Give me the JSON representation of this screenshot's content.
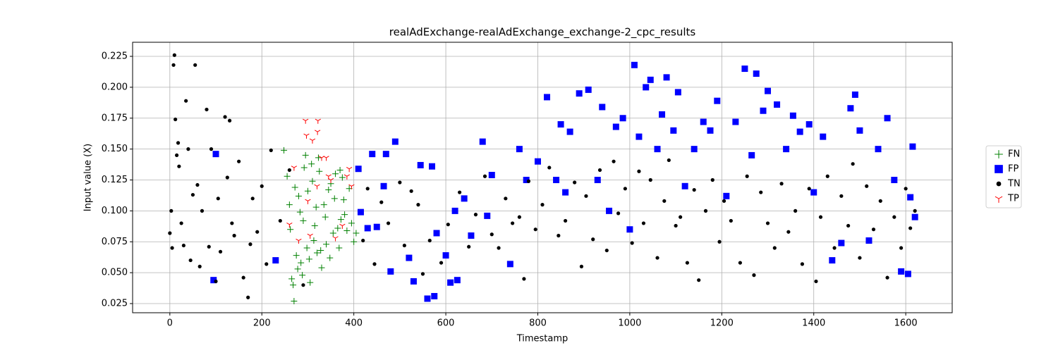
{
  "chart_data": {
    "type": "scatter",
    "title": "realAdExchange-realAdExchange_exchange-2_cpc_results",
    "x_label": "Timestamp",
    "y_label": "Input value (X)",
    "xlim": [
      -81,
      1701
    ],
    "ylim": [
      0.0176,
      0.2364
    ],
    "xticks": [
      0,
      200,
      400,
      600,
      800,
      1000,
      1200,
      1400,
      1600
    ],
    "yticks": [
      0.025,
      {
        "value": 0.05,
        "label": "0.050"
      },
      0.075,
      {
        "value": 0.1,
        "label": "0.100"
      },
      0.125,
      {
        "value": 0.15,
        "label": "0.150"
      },
      0.175,
      {
        "value": 0.2,
        "label": "0.200"
      },
      0.225
    ],
    "grid": true,
    "legend": "right",
    "series": [
      {
        "name": "FN",
        "color": "#008000",
        "marker": "plus",
        "x": [
          248,
          255,
          260,
          262,
          265,
          268,
          270,
          272,
          275,
          278,
          280,
          283,
          285,
          288,
          290,
          292,
          295,
          298,
          300,
          303,
          305,
          308,
          310,
          313,
          315,
          318,
          320,
          323,
          325,
          328,
          330,
          335,
          338,
          340,
          345,
          348,
          350,
          355,
          358,
          360,
          365,
          368,
          370,
          372,
          375,
          378,
          380,
          385,
          390,
          395,
          400,
          405
        ],
        "values": [
          0.149,
          0.128,
          0.105,
          0.085,
          0.045,
          0.04,
          0.027,
          0.119,
          0.064,
          0.053,
          0.112,
          0.099,
          0.058,
          0.048,
          0.092,
          0.135,
          0.145,
          0.07,
          0.116,
          0.061,
          0.042,
          0.138,
          0.124,
          0.076,
          0.088,
          0.103,
          0.066,
          0.143,
          0.132,
          0.068,
          0.054,
          0.105,
          0.095,
          0.073,
          0.117,
          0.062,
          0.122,
          0.082,
          0.11,
          0.13,
          0.086,
          0.07,
          0.133,
          0.093,
          0.127,
          0.109,
          0.097,
          0.084,
          0.118,
          0.09,
          0.075,
          0.082
        ]
      },
      {
        "name": "FP",
        "color": "#0000ff",
        "marker": "square",
        "x": [
          100,
          95,
          230,
          410,
          415,
          430,
          440,
          450,
          470,
          480,
          490,
          465,
          520,
          530,
          545,
          560,
          575,
          570,
          580,
          600,
          610,
          620,
          625,
          640,
          655,
          680,
          690,
          700,
          740,
          760,
          775,
          800,
          820,
          840,
          850,
          860,
          870,
          890,
          910,
          930,
          940,
          955,
          970,
          985,
          1000,
          1010,
          1020,
          1035,
          1045,
          1060,
          1070,
          1080,
          1095,
          1105,
          1120,
          1140,
          1160,
          1175,
          1190,
          1210,
          1230,
          1250,
          1265,
          1275,
          1290,
          1300,
          1320,
          1340,
          1355,
          1370,
          1390,
          1400,
          1420,
          1440,
          1460,
          1480,
          1490,
          1500,
          1520,
          1540,
          1560,
          1575,
          1590,
          1605,
          1610,
          1615,
          1620
        ],
        "values": [
          0.146,
          0.044,
          0.06,
          0.134,
          0.099,
          0.086,
          0.146,
          0.087,
          0.146,
          0.051,
          0.156,
          0.12,
          0.062,
          0.043,
          0.137,
          0.029,
          0.031,
          0.136,
          0.082,
          0.064,
          0.042,
          0.1,
          0.044,
          0.11,
          0.08,
          0.156,
          0.096,
          0.129,
          0.057,
          0.15,
          0.125,
          0.14,
          0.192,
          0.125,
          0.17,
          0.115,
          0.164,
          0.195,
          0.198,
          0.125,
          0.184,
          0.1,
          0.168,
          0.175,
          0.085,
          0.218,
          0.16,
          0.2,
          0.206,
          0.15,
          0.178,
          0.208,
          0.165,
          0.196,
          0.12,
          0.15,
          0.172,
          0.165,
          0.189,
          0.112,
          0.172,
          0.215,
          0.145,
          0.211,
          0.181,
          0.197,
          0.186,
          0.15,
          0.177,
          0.164,
          0.17,
          0.115,
          0.16,
          0.06,
          0.074,
          0.183,
          0.194,
          0.165,
          0.076,
          0.15,
          0.175,
          0.125,
          0.051,
          0.049,
          0.111,
          0.152,
          0.095
        ]
      },
      {
        "name": "TN",
        "color": "#000000",
        "marker": "circle",
        "x": [
          0,
          3,
          5,
          8,
          10,
          12,
          15,
          18,
          20,
          25,
          30,
          35,
          40,
          45,
          50,
          55,
          60,
          65,
          70,
          80,
          85,
          90,
          100,
          105,
          110,
          120,
          125,
          130,
          135,
          140,
          150,
          160,
          170,
          175,
          180,
          190,
          200,
          210,
          220,
          240,
          260,
          290,
          420,
          430,
          445,
          460,
          475,
          500,
          510,
          525,
          540,
          550,
          565,
          590,
          605,
          630,
          650,
          665,
          685,
          700,
          715,
          730,
          745,
          760,
          770,
          780,
          795,
          810,
          825,
          845,
          860,
          880,
          895,
          905,
          920,
          935,
          950,
          965,
          975,
          990,
          1005,
          1020,
          1030,
          1045,
          1060,
          1075,
          1085,
          1100,
          1110,
          1125,
          1140,
          1150,
          1165,
          1180,
          1195,
          1205,
          1220,
          1240,
          1255,
          1270,
          1285,
          1300,
          1315,
          1330,
          1345,
          1360,
          1375,
          1390,
          1405,
          1415,
          1430,
          1445,
          1460,
          1475,
          1485,
          1500,
          1515,
          1530,
          1545,
          1560,
          1575,
          1590,
          1600,
          1610,
          1620
        ],
        "values": [
          0.082,
          0.1,
          0.07,
          0.218,
          0.226,
          0.174,
          0.145,
          0.155,
          0.136,
          0.09,
          0.072,
          0.189,
          0.15,
          0.06,
          0.113,
          0.218,
          0.121,
          0.055,
          0.1,
          0.182,
          0.071,
          0.15,
          0.043,
          0.11,
          0.067,
          0.176,
          0.127,
          0.173,
          0.09,
          0.08,
          0.14,
          0.046,
          0.03,
          0.073,
          0.11,
          0.083,
          0.12,
          0.057,
          0.149,
          0.092,
          0.133,
          0.04,
          0.076,
          0.118,
          0.057,
          0.107,
          0.09,
          0.123,
          0.072,
          0.116,
          0.105,
          0.049,
          0.076,
          0.058,
          0.089,
          0.115,
          0.071,
          0.097,
          0.128,
          0.081,
          0.07,
          0.11,
          0.09,
          0.095,
          0.045,
          0.124,
          0.085,
          0.105,
          0.135,
          0.08,
          0.092,
          0.123,
          0.055,
          0.112,
          0.077,
          0.133,
          0.068,
          0.14,
          0.098,
          0.118,
          0.074,
          0.132,
          0.09,
          0.125,
          0.062,
          0.108,
          0.141,
          0.088,
          0.095,
          0.058,
          0.117,
          0.044,
          0.1,
          0.125,
          0.075,
          0.108,
          0.092,
          0.058,
          0.128,
          0.048,
          0.115,
          0.09,
          0.07,
          0.122,
          0.083,
          0.1,
          0.057,
          0.118,
          0.043,
          0.095,
          0.128,
          0.07,
          0.112,
          0.088,
          0.138,
          0.062,
          0.12,
          0.085,
          0.108,
          0.046,
          0.095,
          0.07,
          0.118,
          0.086,
          0.1
        ]
      },
      {
        "name": "TP",
        "color": "#ff0000",
        "marker": "tri_down",
        "x": [
          295,
          322,
          297,
          321,
          310,
          330,
          340,
          345,
          320,
          270,
          300,
          260,
          305,
          280,
          360,
          390,
          395,
          350,
          385,
          375
        ],
        "values": [
          0.173,
          0.173,
          0.161,
          0.164,
          0.157,
          0.143,
          0.143,
          0.128,
          0.12,
          0.135,
          0.108,
          0.089,
          0.08,
          0.076,
          0.078,
          0.134,
          0.12,
          0.125,
          0.128,
          0.088
        ]
      }
    ]
  }
}
